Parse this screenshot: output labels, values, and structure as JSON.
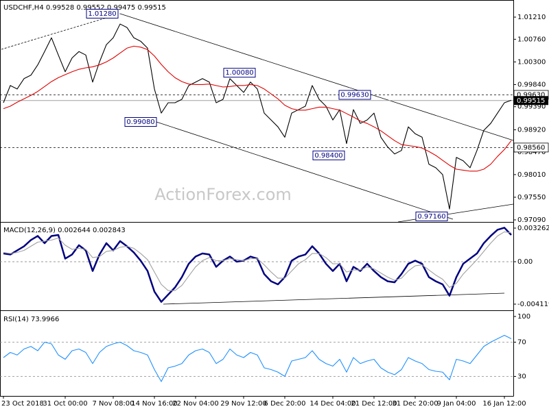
{
  "chart_data": [
    {
      "type": "line",
      "title": "USDCHF,H4 0.99528 0.99552 0.99475 0.99515",
      "watermark": "ActionForex.com",
      "series": [
        {
          "color": "#000000",
          "values": [
            0.9947,
            0.9982,
            0.9975,
            0.9996,
            1.0003,
            1.0024,
            1.0051,
            1.0079,
            1.0044,
            1.001,
            1.0038,
            1.0051,
            1.0044,
            0.9989,
            1.003,
            1.0065,
            1.0079,
            1.0107,
            1.01,
            1.0079,
            1.0072,
            1.0058,
            0.9975,
            0.9926,
            0.9947,
            0.9947,
            0.9954,
            0.9982,
            0.9989,
            0.9996,
            0.9989,
            0.9947,
            0.9954,
            0.9996,
            0.9982,
            0.9968,
            0.9989,
            0.9975,
            0.9926,
            0.9912,
            0.9898,
            0.9877,
            0.9926,
            0.9933,
            0.994,
            0.9982,
            0.9954,
            0.994,
            0.9912,
            0.9933,
            0.9864,
            0.9933,
            0.9905,
            0.9912,
            0.9926,
            0.9877,
            0.9857,
            0.9843,
            0.985,
            0.9898,
            0.9884,
            0.9877,
            0.9822,
            0.9815,
            0.9801,
            0.9731,
            0.9836,
            0.9829,
            0.9815,
            0.985,
            0.9891,
            0.9905,
            0.9926,
            0.9947,
            0.9952
          ]
        },
        {
          "color": "#e00000",
          "values": [
            0.9935,
            0.994,
            0.9948,
            0.9955,
            0.9962,
            0.997,
            0.998,
            0.999,
            0.9998,
            1.0004,
            1.001,
            1.0015,
            1.0018,
            1.002,
            1.0024,
            1.003,
            1.0038,
            1.0048,
            1.0058,
            1.0062,
            1.006,
            1.0055,
            1.0042,
            1.0025,
            1.001,
            0.9998,
            0.999,
            0.9985,
            0.9984,
            0.9984,
            0.9985,
            0.9982,
            0.9979,
            0.998,
            0.9982,
            0.9982,
            0.9984,
            0.9982,
            0.9975,
            0.9965,
            0.9955,
            0.9942,
            0.9935,
            0.9932,
            0.9932,
            0.9935,
            0.9938,
            0.9938,
            0.9935,
            0.9932,
            0.9925,
            0.9918,
            0.991,
            0.9905,
            0.9898,
            0.989,
            0.988,
            0.987,
            0.9862,
            0.986,
            0.9858,
            0.9855,
            0.9848,
            0.984,
            0.983,
            0.982,
            0.9812,
            0.981,
            0.9808,
            0.9808,
            0.9812,
            0.9822,
            0.9838,
            0.9852,
            0.987
          ]
        }
      ],
      "ylim": [
        0.97048,
        1.01558
      ],
      "yticks": [
        {
          "value": 1.0121,
          "label": "1.01210"
        },
        {
          "value": 1.0076,
          "label": "1.00760"
        },
        {
          "value": 1.003,
          "label": "1.00300"
        },
        {
          "value": 0.9984,
          "label": "0.99840"
        },
        {
          "value": 0.9939,
          "label": "0.99390"
        },
        {
          "value": 0.9892,
          "label": "0.98920"
        },
        {
          "value": 0.9847,
          "label": "0.98470"
        },
        {
          "value": 0.9801,
          "label": "0.98010"
        },
        {
          "value": 0.9755,
          "label": "0.97550"
        },
        {
          "value": 0.9709,
          "label": "0.97090"
        }
      ],
      "levels": [
        {
          "value": 0.9963,
          "label": "0.99630"
        },
        {
          "value": 0.9856,
          "label": "0.98560"
        }
      ],
      "current": {
        "value": 0.99515,
        "label": "0.99515"
      },
      "annotations": [
        {
          "value": 1.0128,
          "label": "1.01280"
        },
        {
          "value": 0.9908,
          "label": "0.99080"
        },
        {
          "value": 1.0008,
          "label": "1.00080"
        },
        {
          "value": 0.9963,
          "label": "0.99630"
        },
        {
          "value": 0.984,
          "label": "0.98400"
        },
        {
          "value": 0.9716,
          "label": "0.97160"
        }
      ]
    },
    {
      "type": "line",
      "title": "MACD(12,26,9) 0.002644 0.002843",
      "series": [
        {
          "color": "#000080",
          "values": [
            0.0008,
            0.0007,
            0.0011,
            0.0015,
            0.0021,
            0.0025,
            0.0018,
            0.0025,
            0.0026,
            0.0003,
            0.0007,
            0.0016,
            0.0011,
            -0.0009,
            0.0007,
            0.0018,
            0.0011,
            0.002,
            0.0015,
            0.0009,
            0.0001,
            -0.0009,
            -0.0029,
            -0.0039,
            -0.0032,
            -0.0025,
            -0.0015,
            -0.0002,
            0.0005,
            0.0008,
            0.0007,
            -0.0005,
            0.0001,
            0.0005,
            0.0,
            0.0001,
            0.0005,
            0.0003,
            -0.0012,
            -0.0019,
            -0.0022,
            -0.0015,
            0.0001,
            0.0005,
            0.0007,
            0.0015,
            0.0008,
            -0.0002,
            -0.0009,
            -0.0002,
            -0.0019,
            -0.0005,
            -0.0009,
            -0.0002,
            -0.0009,
            -0.0015,
            -0.0019,
            -0.002,
            -0.0012,
            -0.0002,
            0.0001,
            -0.0002,
            -0.0015,
            -0.0019,
            -0.0022,
            -0.0033,
            -0.0015,
            -0.0002,
            0.0003,
            0.0008,
            0.0018,
            0.0025,
            0.0031,
            0.0033,
            0.0026
          ]
        },
        {
          "color": "#a0a0a0",
          "values": [
            0.0009,
            0.0008,
            0.0009,
            0.0011,
            0.0015,
            0.0019,
            0.002,
            0.0021,
            0.0023,
            0.0016,
            0.0012,
            0.0013,
            0.0012,
            0.0004,
            0.0005,
            0.001,
            0.0011,
            0.0014,
            0.0015,
            0.0013,
            0.0008,
            0.0002,
            -0.001,
            -0.0022,
            -0.0028,
            -0.0028,
            -0.0023,
            -0.0014,
            -0.0005,
            0.0001,
            0.0004,
            0.0001,
            0.0001,
            0.0003,
            0.0002,
            0.0001,
            0.0003,
            0.0003,
            -0.0003,
            -0.001,
            -0.0016,
            -0.0016,
            -0.0009,
            -0.0002,
            0.0002,
            0.0008,
            0.0008,
            0.0004,
            -0.0002,
            -0.0002,
            -0.001,
            -0.0008,
            -0.0008,
            -0.0005,
            -0.0007,
            -0.0011,
            -0.0015,
            -0.0018,
            -0.0016,
            -0.0009,
            -0.0004,
            -0.0003,
            -0.0008,
            -0.0013,
            -0.0017,
            -0.0025,
            -0.0021,
            -0.0012,
            -0.0005,
            0.0002,
            0.001,
            0.0018,
            0.0025,
            0.0029,
            0.0028
          ]
        }
      ],
      "ylim": [
        -0.004652,
        0.003795
      ],
      "yticks": [
        0.003262,
        {
          "value": 0,
          "label": "0.00"
        },
        -0.004119
      ],
      "levels": [
        0
      ]
    },
    {
      "type": "line",
      "title": "RSI(14) 73.9966",
      "categories": [
        "23 Oct 2018",
        null,
        null,
        null,
        null,
        null,
        null,
        null,
        null,
        "31 Oct 00:00",
        null,
        null,
        null,
        null,
        null,
        null,
        "7 Nov 08:00",
        null,
        null,
        null,
        null,
        null,
        "14 Nov 16:00",
        null,
        null,
        null,
        null,
        null,
        "22 Nov 04:00",
        null,
        null,
        null,
        null,
        null,
        null,
        "29 Nov 12:00",
        null,
        null,
        null,
        null,
        null,
        "6 Dec 20:00",
        null,
        null,
        null,
        null,
        null,
        null,
        "14 Dec 04:00",
        null,
        null,
        null,
        null,
        null,
        "21 Dec 12:00",
        null,
        null,
        null,
        null,
        null,
        "31 Dec 20:00",
        null,
        null,
        null,
        null,
        null,
        "9 Jan 04:00",
        null,
        null,
        null,
        null,
        null,
        null,
        "16 Jan 12:00",
        null
      ],
      "series": [
        {
          "color": "#1e90ff",
          "values": [
            52,
            58,
            55,
            62,
            65,
            60,
            70,
            68,
            55,
            50,
            60,
            62,
            58,
            45,
            58,
            65,
            68,
            70,
            66,
            60,
            58,
            55,
            38,
            24,
            40,
            42,
            45,
            55,
            60,
            62,
            58,
            45,
            50,
            62,
            55,
            52,
            58,
            55,
            40,
            38,
            35,
            30,
            48,
            50,
            52,
            60,
            50,
            45,
            42,
            50,
            35,
            52,
            45,
            48,
            50,
            40,
            35,
            32,
            38,
            52,
            48,
            45,
            38,
            36,
            35,
            26,
            50,
            48,
            45,
            55,
            65,
            70,
            74,
            78,
            74
          ]
        }
      ],
      "ylim": [
        7.2,
        105.6
      ],
      "yticks": [
        100,
        70,
        30
      ],
      "levels": [
        70,
        30
      ]
    }
  ]
}
